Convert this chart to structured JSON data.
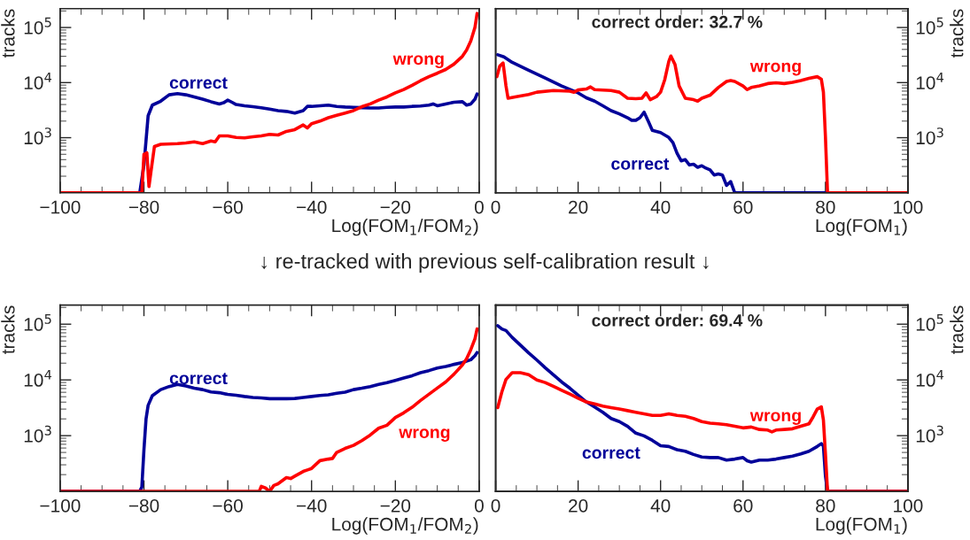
{
  "chart_data": [
    {
      "type": "line",
      "xlabel": "Log(FOM$_{1}$/FOM$_{2}$)",
      "ylabel": "tracks",
      "log": "y",
      "xlim": [
        -100,
        0
      ],
      "xticks": [
        {
          "value": -100,
          "label": "−100"
        },
        {
          "value": -80,
          "label": "−80"
        },
        {
          "value": -60,
          "label": "−60"
        },
        {
          "value": -40,
          "label": "−40"
        },
        {
          "value": -20,
          "label": "−20"
        },
        0
      ],
      "ylim": [
        100,
        220000
      ],
      "yticks": [
        {
          "value": 1000,
          "label": "10$^{3}$"
        },
        {
          "value": 10000,
          "label": "10$^{4}$"
        },
        {
          "value": 100000,
          "label": "10$^{5}$"
        }
      ],
      "series": [
        {
          "name": "correct",
          "color": "#000099",
          "x": [
            -100,
            -81,
            -80,
            -79,
            -78,
            -76,
            -74,
            -72,
            -70,
            -68,
            -66,
            -64,
            -62,
            -61,
            -60,
            -59,
            -58,
            -56,
            -54,
            -52,
            -50,
            -48,
            -46,
            -44,
            -42,
            -41,
            -40,
            -38,
            -36,
            -34,
            -32,
            -30,
            -28,
            -26,
            -24,
            -22,
            -20,
            -18,
            -16,
            -14,
            -12,
            -11,
            -10,
            -8,
            -6,
            -4,
            -3,
            -2,
            -1,
            -0.5
          ],
          "values": [
            100,
            100,
            320,
            2500,
            3900,
            4600,
            6000,
            6300,
            6000,
            5500,
            5000,
            4500,
            4100,
            4300,
            4800,
            4400,
            4000,
            3800,
            3650,
            3500,
            3300,
            3100,
            3000,
            2800,
            3100,
            3700,
            3700,
            3800,
            3900,
            3700,
            3600,
            3550,
            3500,
            3450,
            3450,
            3550,
            3600,
            3600,
            3700,
            3750,
            3900,
            4100,
            3800,
            4100,
            4400,
            4500,
            3900,
            4100,
            5000,
            6200
          ]
        },
        {
          "name": "wrong",
          "color": "#ff0000",
          "x": [
            -100,
            -80.5,
            -80,
            -79.3,
            -78.8,
            -78.3,
            -77.5,
            -76,
            -72,
            -70,
            -68,
            -66,
            -64,
            -63,
            -62,
            -60,
            -58,
            -56,
            -54,
            -52,
            -50,
            -48,
            -46,
            -44,
            -42,
            -41,
            -40,
            -38,
            -36,
            -34,
            -32,
            -30,
            -28,
            -26,
            -24,
            -22,
            -20,
            -18,
            -16,
            -14,
            -12,
            -10,
            -8,
            -6,
            -4,
            -3,
            -2,
            -1,
            -0.5
          ],
          "values": [
            100,
            100,
            500,
            530,
            130,
            250,
            690,
            760,
            780,
            800,
            840,
            780,
            870,
            840,
            1080,
            1080,
            1010,
            990,
            1040,
            1080,
            1150,
            1120,
            1300,
            1400,
            1700,
            1500,
            1800,
            2000,
            2300,
            2550,
            2800,
            3100,
            3650,
            4100,
            4800,
            5500,
            6500,
            7500,
            8900,
            10800,
            12800,
            14800,
            17300,
            21700,
            30000,
            39000,
            57000,
            101000,
            180000
          ]
        }
      ]
    },
    {
      "type": "line",
      "xlabel": "Log(FOM$_{1}$)",
      "y2label": "tracks",
      "log": "y2",
      "xlim": [
        0,
        100
      ],
      "xticks": [
        0,
        20,
        40,
        60,
        80,
        100
      ],
      "y2lim": [
        100,
        220000
      ],
      "y2ticks": [
        {
          "value": 1000,
          "label": "10$^{3}$"
        },
        {
          "value": 10000,
          "label": "10$^{4}$"
        },
        {
          "value": 100000,
          "label": "10$^{5}$"
        }
      ],
      "tick_labels": "x",
      "annotations": [
        "correct order: 32.7 %"
      ],
      "series": [
        {
          "name": "correct",
          "color": "#000099",
          "axis": "y2",
          "x": [
            0.5,
            2,
            4,
            8,
            12,
            16,
            20,
            22,
            24,
            26,
            28,
            30,
            32,
            33,
            34,
            35,
            36,
            37,
            38,
            40,
            42,
            43,
            44,
            45,
            46,
            47,
            48,
            49,
            50,
            51,
            52,
            53,
            54,
            55,
            56,
            57,
            58,
            100
          ],
          "values": [
            32000,
            29300,
            23300,
            16700,
            12100,
            8700,
            6500,
            5300,
            4600,
            3800,
            3100,
            2700,
            2300,
            2070,
            2070,
            2300,
            2900,
            2000,
            1360,
            1240,
            1010,
            815,
            520,
            380,
            400,
            320,
            330,
            290,
            310,
            280,
            260,
            210,
            220,
            210,
            136,
            160,
            100,
            100
          ]
        },
        {
          "name": "wrong",
          "color": "#ff0000",
          "axis": "y2",
          "x": [
            0.3,
            1,
            1.8,
            2.5,
            3,
            5,
            8,
            10,
            14,
            18,
            19,
            20,
            22,
            23,
            24,
            28,
            30,
            32,
            34,
            35.5,
            36.5,
            37.5,
            39,
            40,
            41,
            42,
            42.5,
            43.5,
            44.5,
            46,
            48,
            49,
            50,
            52,
            54,
            56,
            57,
            58,
            60,
            61,
            62,
            64,
            66,
            68,
            70,
            72,
            74,
            76,
            78,
            79,
            79.5,
            80,
            80.5,
            100
          ],
          "values": [
            12800,
            20000,
            22700,
            8700,
            5200,
            5550,
            6100,
            6700,
            7200,
            7000,
            6700,
            7350,
            7650,
            8350,
            7450,
            7200,
            6700,
            5200,
            5100,
            5200,
            6500,
            4900,
            5550,
            6700,
            11200,
            24200,
            30400,
            21300,
            8700,
            5200,
            4900,
            4600,
            5200,
            5900,
            8150,
            10500,
            10900,
            10500,
            8700,
            7450,
            8150,
            8700,
            9600,
            9900,
            9600,
            10100,
            10900,
            11900,
            12800,
            11500,
            6700,
            1000,
            100,
            100
          ]
        }
      ]
    },
    {
      "type": "line",
      "title": "↓ re-tracked with previous self-calibration result ↓",
      "xlabel": "Log(FOM$_{1}$/FOM$_{2}$)",
      "ylabel": "tracks",
      "log": "y",
      "xlim": [
        -100,
        0
      ],
      "xticks": [
        {
          "value": -100,
          "label": "−100"
        },
        {
          "value": -80,
          "label": "−80"
        },
        {
          "value": -60,
          "label": "−60"
        },
        {
          "value": -40,
          "label": "−40"
        },
        {
          "value": -20,
          "label": "−20"
        },
        0
      ],
      "ylim": [
        100,
        220000
      ],
      "yticks": [
        {
          "value": 1000,
          "label": "10$^{3}$"
        },
        {
          "value": 10000,
          "label": "10$^{4}$"
        },
        {
          "value": 100000,
          "label": "10$^{5}$"
        }
      ],
      "series": [
        {
          "name": "correct",
          "color": "#000099",
          "x": [
            -100,
            -81,
            -80.5,
            -80,
            -79.5,
            -79,
            -78,
            -76,
            -74,
            -72,
            -70,
            -68,
            -66,
            -64,
            -62,
            -60,
            -58,
            -56,
            -54,
            -52,
            -50,
            -48,
            -46,
            -44,
            -42,
            -40,
            -38,
            -36,
            -34,
            -32,
            -30,
            -28,
            -26,
            -24,
            -22,
            -20,
            -18,
            -16,
            -14,
            -12,
            -10,
            -8,
            -6,
            -4,
            -2,
            -1,
            -0.5
          ],
          "values": [
            100,
            100,
            120,
            560,
            2000,
            3500,
            5200,
            6700,
            7600,
            8300,
            7800,
            7100,
            6700,
            6100,
            5900,
            5500,
            5300,
            5050,
            4850,
            4750,
            4600,
            4600,
            4600,
            4650,
            4850,
            5050,
            5250,
            5400,
            5750,
            6050,
            6700,
            7100,
            7600,
            8300,
            8950,
            9800,
            10800,
            11900,
            13500,
            14700,
            16300,
            17400,
            19000,
            20500,
            23000,
            27200,
            31000
          ]
        },
        {
          "name": "wrong",
          "color": "#ff0000",
          "x": [
            -100,
            -52.5,
            -52,
            -51,
            -50,
            -49,
            -48,
            -46,
            -45,
            -44,
            -42,
            -41,
            -40,
            -38,
            -36,
            -35,
            -34,
            -32,
            -30,
            -28,
            -26,
            -24,
            -22,
            -20,
            -18,
            -16,
            -14,
            -12,
            -10,
            -8,
            -6,
            -4,
            -3,
            -2,
            -1,
            -0.5
          ],
          "values": [
            100,
            100,
            123,
            115,
            100,
            128,
            137,
            177,
            170,
            188,
            228,
            243,
            258,
            356,
            380,
            390,
            500,
            590,
            670,
            815,
            1025,
            1360,
            1540,
            2120,
            2570,
            3230,
            4280,
            5530,
            7140,
            9200,
            12700,
            18600,
            24000,
            35000,
            55000,
            82000
          ]
        }
      ]
    },
    {
      "type": "line",
      "xlabel": "Log(FOM$_{1}$)",
      "y2label": "tracks",
      "log": "y2",
      "xlim": [
        0,
        100
      ],
      "xticks": [
        0,
        20,
        40,
        60,
        80,
        100
      ],
      "y2lim": [
        100,
        220000
      ],
      "y2ticks": [
        {
          "value": 1000,
          "label": "10$^{3}$"
        },
        {
          "value": 10000,
          "label": "10$^{4}$"
        },
        {
          "value": 100000,
          "label": "10$^{5}$"
        }
      ],
      "tick_labels": "x",
      "annotations": [
        "correct order: 69.4 %"
      ],
      "series": [
        {
          "name": "correct",
          "color": "#000099",
          "axis": "y2",
          "x": [
            0.5,
            1.5,
            2.5,
            4,
            6,
            8,
            10,
            12,
            14,
            16,
            18,
            20,
            22,
            24,
            26,
            28,
            30,
            32,
            34,
            36,
            38,
            40,
            42,
            44,
            46,
            48,
            50,
            52,
            54,
            56,
            58,
            60,
            61,
            62,
            64,
            66,
            68,
            70,
            72,
            74,
            76,
            78,
            79,
            79.5,
            80,
            80.5,
            100
          ],
          "values": [
            94000,
            82000,
            77000,
            58000,
            42000,
            30500,
            22700,
            16600,
            12400,
            9200,
            7100,
            5340,
            4030,
            3280,
            2630,
            2030,
            1790,
            1470,
            1110,
            990,
            825,
            660,
            640,
            560,
            525,
            460,
            415,
            405,
            405,
            365,
            380,
            405,
            355,
            335,
            365,
            365,
            380,
            405,
            430,
            470,
            525,
            640,
            720,
            650,
            187,
            100,
            100
          ]
        },
        {
          "name": "wrong",
          "color": "#ff0000",
          "axis": "y2",
          "x": [
            0.5,
            1.5,
            2.5,
            4,
            6,
            8,
            10,
            12,
            14,
            16,
            18,
            20,
            22,
            24,
            26,
            28,
            30,
            32,
            34,
            36,
            38,
            40,
            42,
            44,
            46,
            48,
            50,
            52,
            54,
            56,
            58,
            60,
            62,
            64,
            66,
            67,
            68,
            70,
            72,
            74,
            76,
            77,
            78,
            79,
            79.5,
            80,
            80.5,
            100
          ],
          "values": [
            3190,
            6080,
            10200,
            13500,
            13500,
            12400,
            10000,
            8980,
            7680,
            6500,
            5560,
            4700,
            4030,
            3730,
            3400,
            3190,
            3000,
            2810,
            2630,
            2470,
            2310,
            2310,
            2470,
            2310,
            2230,
            2030,
            1790,
            1680,
            1630,
            1570,
            1470,
            1380,
            1430,
            1290,
            1260,
            1170,
            1260,
            1290,
            1330,
            1470,
            1630,
            2170,
            3000,
            3280,
            1910,
            460,
            100,
            100
          ]
        }
      ]
    }
  ]
}
